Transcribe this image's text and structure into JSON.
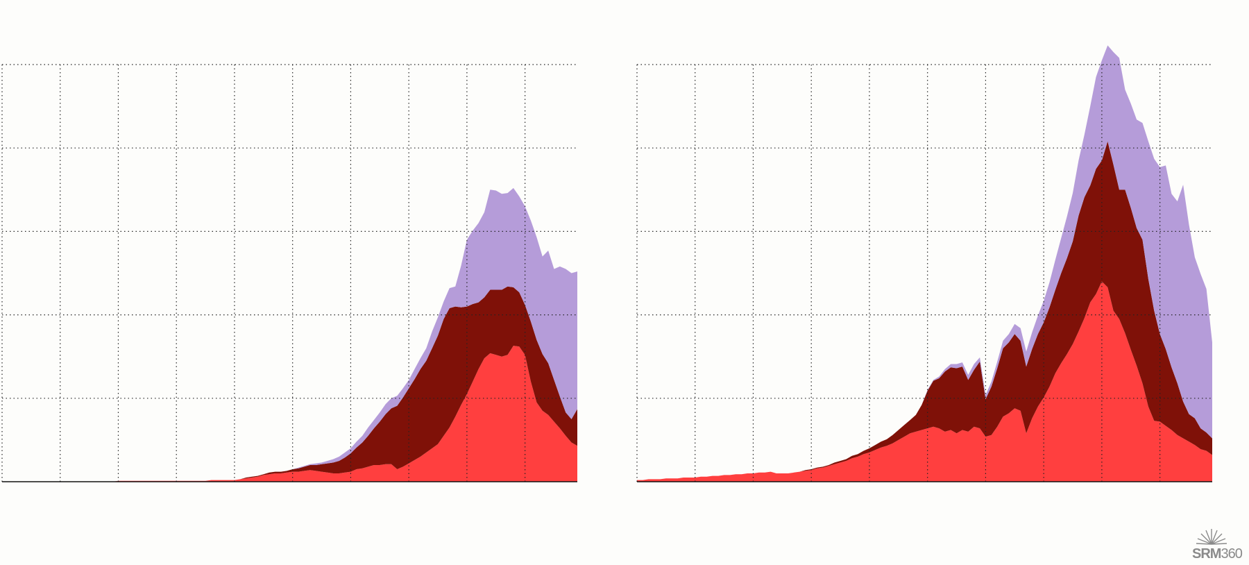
{
  "chart_data": [
    {
      "type": "area",
      "stacked": true,
      "grid": true,
      "grid_style": "dotted",
      "x": [
        0,
        1,
        2,
        3,
        4,
        5,
        6,
        7,
        8,
        9,
        10,
        11,
        12,
        13,
        14,
        15,
        16,
        17,
        18,
        19,
        20,
        21,
        22,
        23,
        24,
        25,
        26,
        27,
        28,
        29,
        30,
        31,
        32,
        33,
        34,
        35,
        36,
        37,
        38,
        39,
        40,
        41,
        42,
        43,
        44,
        45,
        46,
        47,
        48,
        49,
        50,
        51,
        52,
        53,
        54,
        55,
        56,
        57,
        58,
        59,
        60,
        61,
        62,
        63,
        64,
        65,
        66,
        67,
        68,
        69,
        70,
        71,
        72,
        73,
        74,
        75,
        76,
        77,
        78,
        79,
        80,
        81,
        82,
        83,
        84,
        85,
        86,
        87,
        88,
        89,
        90,
        91,
        92,
        93,
        94,
        95,
        96,
        97,
        98,
        99
      ],
      "xlim": [
        0,
        99
      ],
      "ylim": [
        0,
        5
      ],
      "series": [
        {
          "color": "#ff3f3f",
          "values": [
            0,
            0,
            0,
            0,
            0,
            0,
            0,
            0,
            0,
            0,
            0,
            0,
            0,
            0,
            0,
            0,
            0,
            0,
            0,
            0,
            0.01,
            0.01,
            0.01,
            0.01,
            0.01,
            0.01,
            0.01,
            0.01,
            0.01,
            0.01,
            0.01,
            0.01,
            0.01,
            0.01,
            0.01,
            0.01,
            0.02,
            0.02,
            0.02,
            0.02,
            0.02,
            0.03,
            0.04,
            0.05,
            0.06,
            0.08,
            0.09,
            0.1,
            0.1,
            0.11,
            0.12,
            0.12,
            0.13,
            0.14,
            0.13,
            0.12,
            0.11,
            0.1,
            0.1,
            0.11,
            0.12,
            0.15,
            0.16,
            0.18,
            0.2,
            0.2,
            0.21,
            0.21,
            0.15,
            0.18,
            0.22,
            0.26,
            0.3,
            0.35,
            0.4,
            0.45,
            0.55,
            0.65,
            0.78,
            0.92,
            1.05,
            1.2,
            1.35,
            1.48,
            1.54,
            1.52,
            1.5,
            1.52,
            1.63,
            1.62,
            1.52,
            1.2,
            0.95,
            0.85,
            0.8,
            0.72,
            0.64,
            0.55,
            0.47,
            0.43
          ]
        },
        {
          "color": "#7f1108",
          "values": [
            0,
            0,
            0,
            0,
            0,
            0,
            0,
            0,
            0,
            0,
            0,
            0,
            0,
            0,
            0,
            0,
            0,
            0,
            0,
            0,
            0,
            0,
            0,
            0,
            0,
            0,
            0,
            0,
            0,
            0,
            0,
            0,
            0,
            0,
            0,
            0,
            0,
            0,
            0,
            0,
            0,
            0,
            0.01,
            0.01,
            0.01,
            0.01,
            0.02,
            0.02,
            0.02,
            0.02,
            0.03,
            0.04,
            0.05,
            0.06,
            0.07,
            0.09,
            0.11,
            0.13,
            0.15,
            0.18,
            0.22,
            0.26,
            0.31,
            0.37,
            0.44,
            0.52,
            0.6,
            0.67,
            0.76,
            0.83,
            0.9,
            0.97,
            1.05,
            1.1,
            1.2,
            1.3,
            1.4,
            1.43,
            1.32,
            1.17,
            1.05,
            0.93,
            0.8,
            0.73,
            0.76,
            0.78,
            0.8,
            0.82,
            0.7,
            0.65,
            0.6,
            0.72,
            0.75,
            0.68,
            0.62,
            0.5,
            0.38,
            0.28,
            0.28,
            0.44
          ]
        },
        {
          "color": "#b59cd9",
          "values": [
            0,
            0,
            0,
            0,
            0,
            0,
            0,
            0,
            0,
            0,
            0,
            0,
            0,
            0,
            0,
            0,
            0,
            0,
            0,
            0,
            0,
            0,
            0,
            0,
            0,
            0,
            0,
            0,
            0,
            0,
            0,
            0,
            0,
            0,
            0,
            0,
            0,
            0,
            0,
            0,
            0,
            0,
            0,
            0,
            0,
            0,
            0,
            0,
            0,
            0,
            0,
            0.01,
            0.01,
            0.01,
            0.02,
            0.02,
            0.03,
            0.04,
            0.05,
            0.06,
            0.06,
            0.07,
            0.08,
            0.1,
            0.1,
            0.11,
            0.12,
            0.12,
            0.12,
            0.11,
            0.1,
            0.12,
            0.13,
            0.15,
            0.2,
            0.22,
            0.21,
            0.24,
            0.24,
            0.5,
            0.8,
            0.88,
            0.95,
            1.02,
            1.2,
            1.19,
            1.15,
            1.12,
            1.19,
            1.15,
            1.18,
            1.21,
            1.23,
            1.17,
            1.35,
            1.33,
            1.56,
            1.72,
            1.75,
            1.65
          ]
        }
      ]
    },
    {
      "type": "area",
      "stacked": true,
      "grid": true,
      "grid_style": "dotted",
      "x": [
        0,
        1,
        2,
        3,
        4,
        5,
        6,
        7,
        8,
        9,
        10,
        11,
        12,
        13,
        14,
        15,
        16,
        17,
        18,
        19,
        20,
        21,
        22,
        23,
        24,
        25,
        26,
        27,
        28,
        29,
        30,
        31,
        32,
        33,
        34,
        35,
        36,
        37,
        38,
        39,
        40,
        41,
        42,
        43,
        44,
        45,
        46,
        47,
        48,
        49,
        50,
        51,
        52,
        53,
        54,
        55,
        56,
        57,
        58,
        59,
        60,
        61,
        62,
        63,
        64,
        65,
        66,
        67,
        68,
        69,
        70,
        71,
        72,
        73,
        74,
        75,
        76,
        77,
        78,
        79,
        80,
        81,
        82,
        83,
        84,
        85,
        86,
        87,
        88,
        89,
        90,
        91,
        92,
        93,
        94,
        95,
        96,
        97,
        98,
        99
      ],
      "xlim": [
        0,
        99
      ],
      "ylim": [
        0,
        5
      ],
      "series": [
        {
          "color": "#ff3f3f",
          "values": [
            0.02,
            0.02,
            0.03,
            0.03,
            0.03,
            0.04,
            0.04,
            0.04,
            0.05,
            0.05,
            0.05,
            0.06,
            0.06,
            0.07,
            0.07,
            0.08,
            0.08,
            0.09,
            0.09,
            0.1,
            0.1,
            0.11,
            0.11,
            0.12,
            0.1,
            0.1,
            0.1,
            0.11,
            0.12,
            0.13,
            0.14,
            0.16,
            0.17,
            0.19,
            0.21,
            0.23,
            0.25,
            0.28,
            0.3,
            0.33,
            0.35,
            0.38,
            0.41,
            0.43,
            0.46,
            0.5,
            0.54,
            0.58,
            0.6,
            0.62,
            0.64,
            0.66,
            0.64,
            0.6,
            0.62,
            0.58,
            0.62,
            0.6,
            0.66,
            0.64,
            0.54,
            0.56,
            0.66,
            0.78,
            0.82,
            0.88,
            0.85,
            0.58,
            0.76,
            0.9,
            1.01,
            1.14,
            1.3,
            1.42,
            1.53,
            1.65,
            1.8,
            1.96,
            2.15,
            2.25,
            2.4,
            2.33,
            2.05,
            1.95,
            1.78,
            1.58,
            1.39,
            1.18,
            0.9,
            0.73,
            0.72,
            0.67,
            0.62,
            0.56,
            0.52,
            0.48,
            0.44,
            0.39,
            0.37,
            0.32
          ]
        },
        {
          "color": "#7f1108",
          "values": [
            0,
            0,
            0,
            0,
            0,
            0,
            0,
            0,
            0,
            0,
            0,
            0,
            0,
            0,
            0,
            0,
            0,
            0,
            0,
            0,
            0,
            0,
            0,
            0,
            0,
            0,
            0,
            0,
            0,
            0.01,
            0.01,
            0.01,
            0.01,
            0.01,
            0.02,
            0.02,
            0.02,
            0.03,
            0.03,
            0.04,
            0.05,
            0.06,
            0.07,
            0.08,
            0.1,
            0.12,
            0.14,
            0.16,
            0.2,
            0.3,
            0.45,
            0.55,
            0.6,
            0.72,
            0.75,
            0.78,
            0.76,
            0.62,
            0.68,
            0.8,
            0.45,
            0.58,
            0.7,
            0.82,
            0.85,
            0.89,
            0.84,
            0.8,
            0.83,
            0.87,
            0.9,
            0.95,
            1.0,
            1.08,
            1.15,
            1.23,
            1.39,
            1.45,
            1.4,
            1.5,
            1.45,
            1.75,
            1.75,
            1.55,
            1.72,
            1.7,
            1.65,
            1.72,
            1.53,
            1.32,
            1.05,
            0.92,
            0.75,
            0.62,
            0.44,
            0.33,
            0.32,
            0.25,
            0.22,
            0.2
          ]
        },
        {
          "color": "#b59cd9",
          "values": [
            0,
            0,
            0,
            0,
            0,
            0,
            0,
            0,
            0,
            0,
            0,
            0,
            0,
            0,
            0,
            0,
            0,
            0,
            0,
            0,
            0,
            0,
            0,
            0,
            0,
            0,
            0,
            0,
            0,
            0,
            0,
            0,
            0,
            0,
            0,
            0,
            0,
            0,
            0,
            0,
            0,
            0,
            0,
            0,
            0,
            0,
            0,
            0,
            0,
            0,
            0.01,
            0.01,
            0.02,
            0.03,
            0.04,
            0.05,
            0.05,
            0.06,
            0.07,
            0.05,
            0.05,
            0.06,
            0.08,
            0.09,
            0.1,
            0.12,
            0.15,
            0.18,
            0.2,
            0.22,
            0.26,
            0.3,
            0.36,
            0.42,
            0.5,
            0.58,
            0.66,
            0.75,
            0.95,
            1.1,
            1.2,
            1.15,
            1.35,
            1.58,
            1.2,
            1.25,
            1.3,
            1.4,
            1.65,
            1.82,
            2.0,
            2.2,
            2.08,
            2.18,
            2.6,
            2.27,
            1.93,
            1.85,
            1.72,
            1.15
          ]
        }
      ]
    }
  ],
  "logo": {
    "text_bold": "SRM",
    "text_light": "360"
  }
}
